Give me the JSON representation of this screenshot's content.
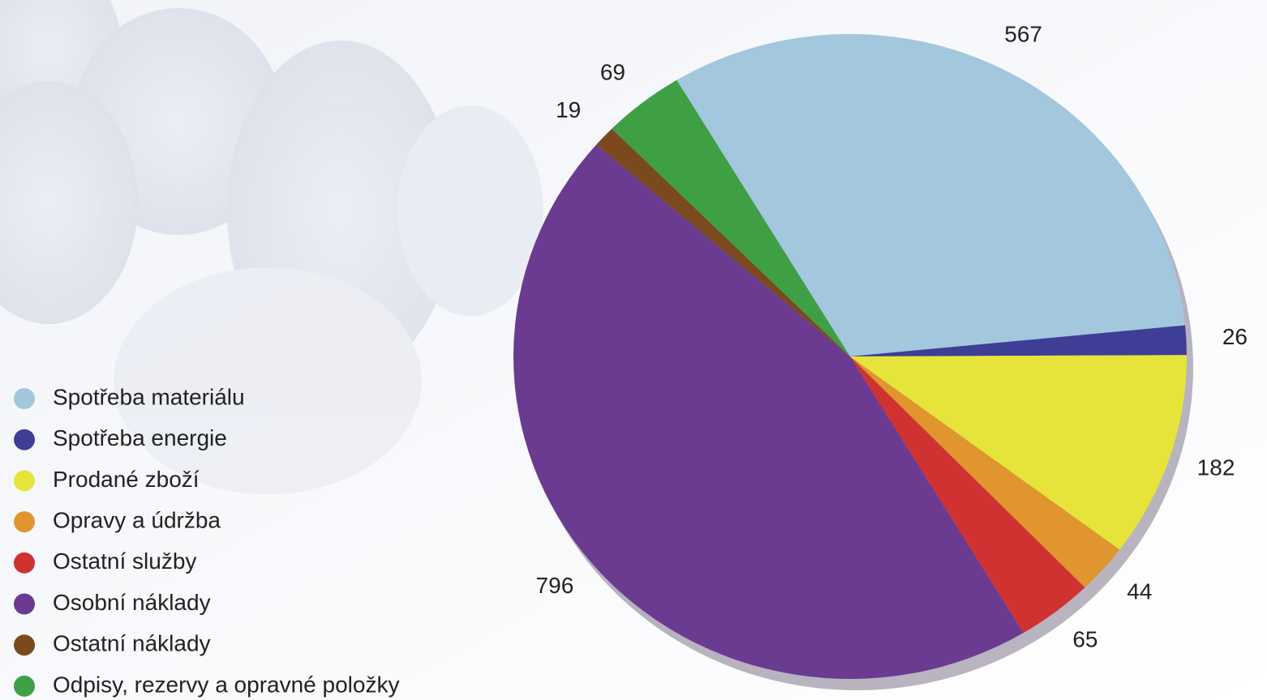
{
  "chart_data": {
    "type": "pie",
    "categories": [
      "Spotřeba materiálu",
      "Spotřeba energie",
      "Prodané zboží",
      "Opravy a údržba",
      "Ostatní služby",
      "Osobní náklady",
      "Ostatní náklady",
      "Odpisy, rezervy a opravné položky"
    ],
    "values": [
      567,
      26,
      182,
      44,
      65,
      796,
      19,
      69
    ],
    "colors": [
      "#a3c7dd",
      "#3e3e96",
      "#e6e43a",
      "#e0952f",
      "#d03232",
      "#6a3b90",
      "#7a4a1e",
      "#3f9f45"
    ],
    "legend": "left"
  }
}
